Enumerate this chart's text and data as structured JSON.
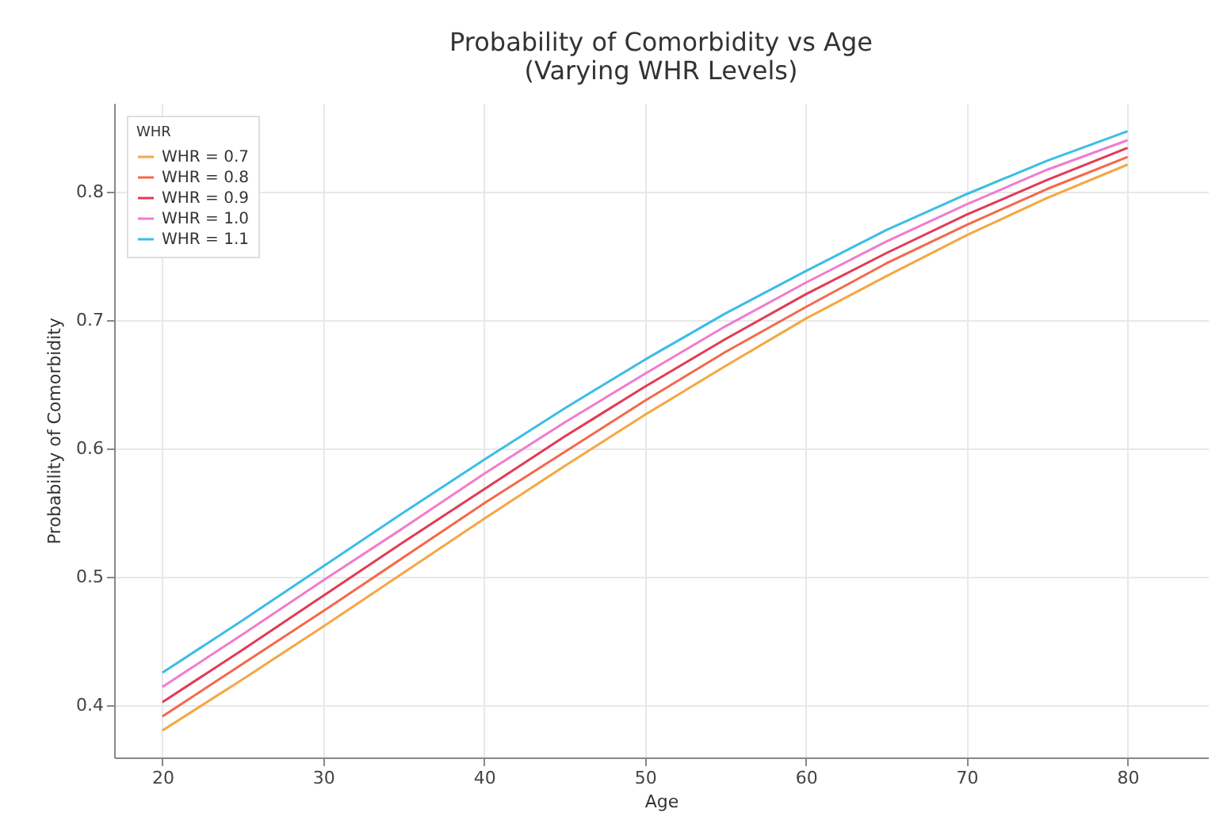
{
  "chart_data": {
    "type": "line",
    "title": "Probability of Comorbidity vs Age\n(Varying WHR Levels)",
    "xlabel": "Age",
    "ylabel": "Probability of Comorbidity",
    "legend_title": "WHR",
    "x": [
      20,
      25,
      30,
      35,
      40,
      45,
      50,
      55,
      60,
      65,
      70,
      75,
      80
    ],
    "series": [
      {
        "name": "WHR = 0.7",
        "color": "#f5a742",
        "values": [
          0.38,
          0.42,
          0.461,
          0.503,
          0.545,
          0.586,
          0.626,
          0.664,
          0.701,
          0.734,
          0.766,
          0.795,
          0.821
        ]
      },
      {
        "name": "WHR = 0.8",
        "color": "#f4694b",
        "values": [
          0.391,
          0.432,
          0.473,
          0.515,
          0.557,
          0.597,
          0.637,
          0.675,
          0.71,
          0.744,
          0.774,
          0.802,
          0.827
        ]
      },
      {
        "name": "WHR = 0.9",
        "color": "#e43a55",
        "values": [
          0.402,
          0.443,
          0.485,
          0.527,
          0.568,
          0.609,
          0.648,
          0.685,
          0.72,
          0.752,
          0.782,
          0.809,
          0.834
        ]
      },
      {
        "name": "WHR = 1.0",
        "color": "#f07ccf",
        "values": [
          0.414,
          0.455,
          0.497,
          0.538,
          0.58,
          0.62,
          0.658,
          0.695,
          0.729,
          0.761,
          0.79,
          0.817,
          0.84
        ]
      },
      {
        "name": "WHR = 1.1",
        "color": "#3cbde6",
        "values": [
          0.425,
          0.466,
          0.508,
          0.55,
          0.591,
          0.631,
          0.669,
          0.705,
          0.738,
          0.77,
          0.798,
          0.824,
          0.847
        ]
      }
    ],
    "xlim": [
      17,
      85
    ],
    "xticks": [
      20,
      30,
      40,
      50,
      60,
      70,
      80
    ],
    "ylim": [
      0.359,
      0.869
    ],
    "yticks": [
      0.4,
      0.5,
      0.6,
      0.7,
      0.8
    ],
    "grid": true,
    "legend": "top left",
    "line_style": "solid",
    "marker": "none"
  }
}
